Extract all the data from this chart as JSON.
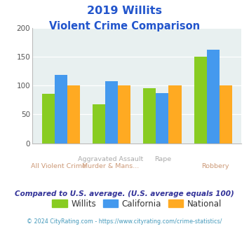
{
  "title_line1": "2019 Willits",
  "title_line2": "Violent Crime Comparison",
  "cat_labels_bot": [
    "All Violent Crime",
    "Murder & Mans...",
    "Rape",
    "Robbery"
  ],
  "cat_labels_top": [
    "",
    "Aggravated Assault",
    "Rape",
    "Robbery"
  ],
  "willits": [
    85,
    67,
    95,
    150
  ],
  "california": [
    118,
    108,
    87,
    162
  ],
  "national": [
    100,
    100,
    100,
    100
  ],
  "willits_color": "#88cc22",
  "california_color": "#4499ee",
  "national_color": "#ffaa22",
  "ylim": [
    0,
    200
  ],
  "yticks": [
    0,
    50,
    100,
    150,
    200
  ],
  "bg_color": "#e8f0f0",
  "title_color": "#2255cc",
  "xlabel_top_color": "#aaaaaa",
  "xlabel_bot_color": "#cc9977",
  "subtitle_note": "Compared to U.S. average. (U.S. average equals 100)",
  "subtitle_note_color": "#333399",
  "footer": "© 2024 CityRating.com - https://www.cityrating.com/crime-statistics/",
  "footer_color": "#4499bb",
  "legend_labels": [
    "Willits",
    "California",
    "National"
  ],
  "legend_text_color": "#333333"
}
